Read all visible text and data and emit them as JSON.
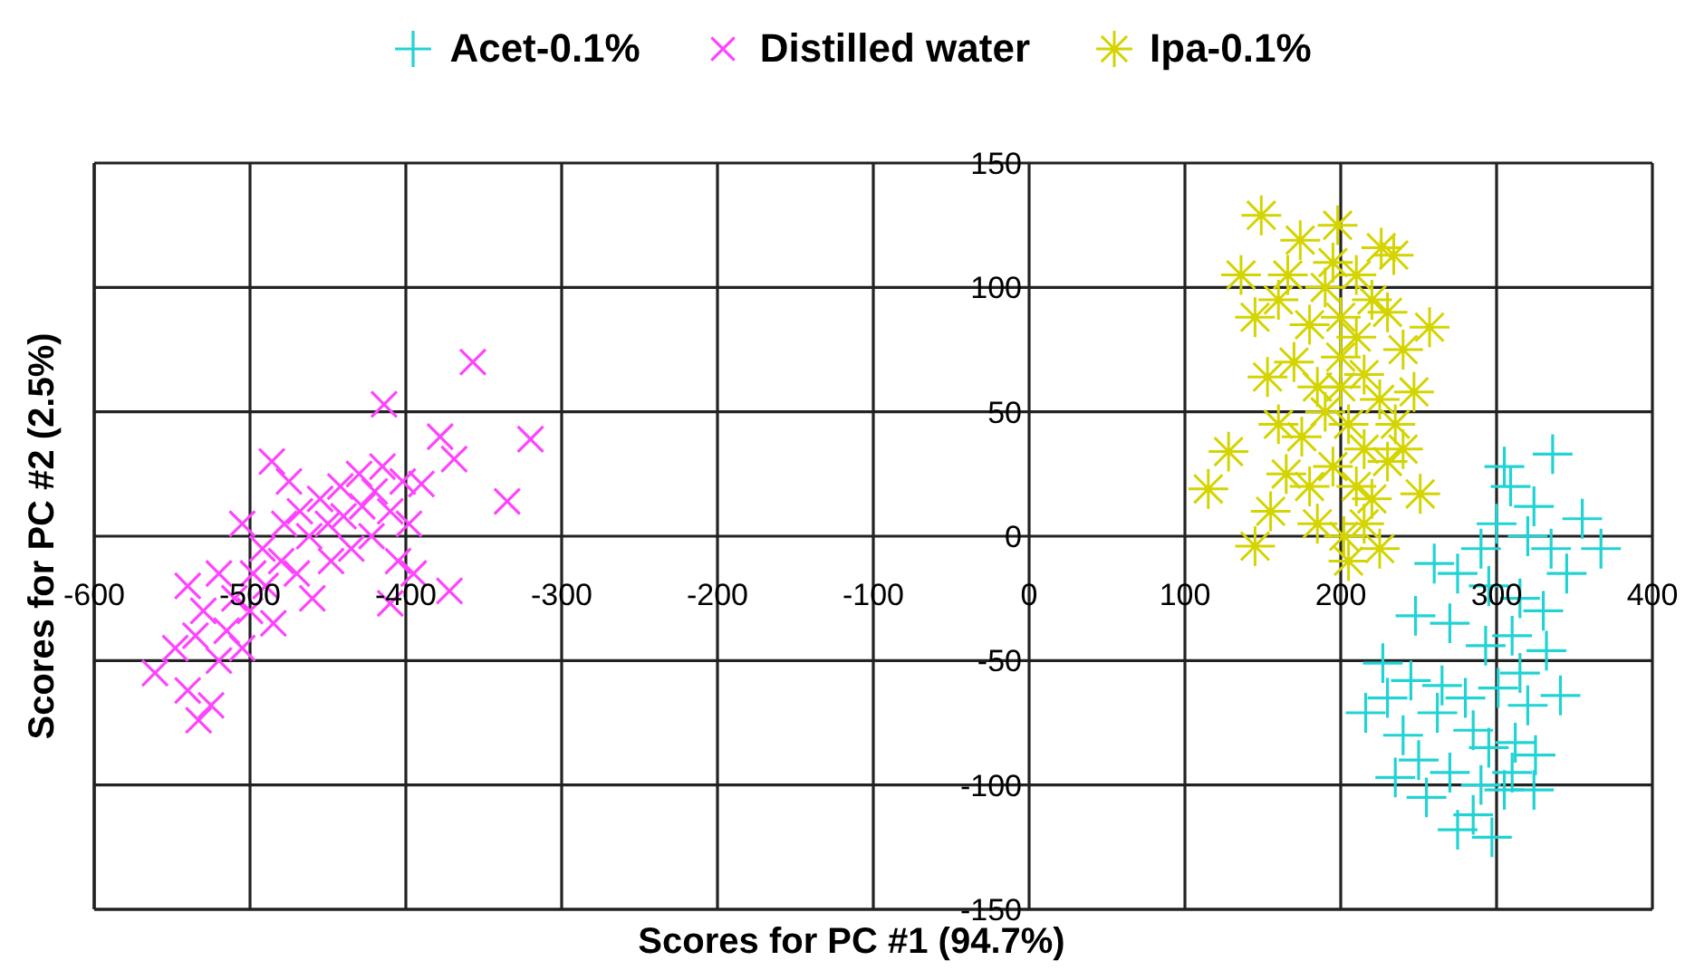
{
  "chart_data": {
    "type": "scatter",
    "xlabel": "Scores for PC #1 (94.7%)",
    "ylabel": "Scores for PC #2 (2.5%)",
    "xlim": [
      -600,
      400
    ],
    "ylim": [
      -150,
      150
    ],
    "xticks": [
      -600,
      -500,
      -400,
      -300,
      -200,
      -100,
      0,
      100,
      200,
      300,
      400
    ],
    "yticks": [
      -150,
      -100,
      -50,
      0,
      50,
      100,
      150
    ],
    "grid": true,
    "legend": "top",
    "series": [
      {
        "name": "Acet-0.1%",
        "color": "#22d3d3",
        "marker": "cross",
        "x": [
          305,
          336,
          355,
          367,
          324,
          309,
          320,
          335,
          345,
          300,
          290,
          260,
          275,
          295,
          315,
          330,
          248,
          270,
          293,
          310,
          332,
          315,
          227,
          245,
          265,
          280,
          301,
          320,
          341,
          216,
          262,
          240,
          285,
          312,
          325,
          250,
          235,
          270,
          305,
          324,
          290,
          255,
          285,
          297,
          275,
          310,
          230,
          295
        ],
        "values": [
          28,
          33,
          7,
          -5,
          12,
          20,
          0,
          -5,
          -15,
          5,
          -5,
          -11,
          -15,
          -20,
          -25,
          -30,
          -32,
          -35,
          -44,
          -40,
          -46,
          -55,
          -51,
          -58,
          -60,
          -65,
          -61,
          -68,
          -64,
          -71,
          -71,
          -80,
          -78,
          -83,
          -88,
          -90,
          -97,
          -95,
          -102,
          -102,
          -100,
          -105,
          -112,
          -121,
          -118,
          -95,
          -65,
          -85
        ]
      },
      {
        "name": "Distilled water",
        "color": "#ff44ff",
        "x": [
          -561,
          -533,
          -540,
          -525,
          -548,
          -535,
          -520,
          -530,
          -515,
          -510,
          -505,
          -500,
          -498,
          -490,
          -492,
          -485,
          -480,
          -478,
          -470,
          -468,
          -462,
          -460,
          -455,
          -450,
          -448,
          -442,
          -440,
          -435,
          -430,
          -428,
          -422,
          -420,
          -415,
          -410,
          -405,
          -402,
          -398,
          -486,
          -414,
          -357,
          -320,
          -335,
          -378,
          -369,
          -390,
          -372,
          -410,
          -395,
          -520,
          -540,
          -505,
          -475
        ],
        "values": [
          -55,
          -74,
          -62,
          -68,
          -45,
          -40,
          -50,
          -30,
          -38,
          -25,
          -45,
          -30,
          -15,
          -20,
          -5,
          -35,
          -10,
          5,
          -15,
          10,
          0,
          -25,
          15,
          5,
          -10,
          20,
          8,
          -5,
          25,
          12,
          0,
          18,
          28,
          10,
          -10,
          22,
          5,
          30,
          53,
          70,
          39,
          14,
          40,
          31,
          21,
          -22,
          -27,
          -15,
          -15,
          -20,
          5,
          22
        ]
      },
      {
        "name": "Ipa-0.1%",
        "color": "#d4d400",
        "marker": "star",
        "x": [
          149,
          174,
          198,
          226,
          257,
          136,
          145,
          153,
          115,
          145,
          128,
          251,
          247,
          234,
          166,
          202,
          205,
          190,
          210,
          220,
          180,
          200,
          230,
          240,
          170,
          185,
          200,
          215,
          225,
          235,
          160,
          175,
          190,
          205,
          215,
          230,
          165,
          180,
          195,
          210,
          220,
          240,
          155,
          185,
          215,
          225,
          200,
          210,
          195,
          160
        ],
        "values": [
          129,
          119,
          125,
          116,
          84,
          105,
          88,
          64,
          19,
          -4,
          34,
          17,
          58,
          113,
          105,
          0,
          -10,
          100,
          105,
          95,
          85,
          88,
          90,
          75,
          70,
          60,
          72,
          65,
          55,
          45,
          45,
          40,
          50,
          45,
          35,
          30,
          25,
          20,
          28,
          20,
          15,
          35,
          10,
          5,
          5,
          -5,
          60,
          80,
          110,
          95
        ]
      }
    ]
  }
}
